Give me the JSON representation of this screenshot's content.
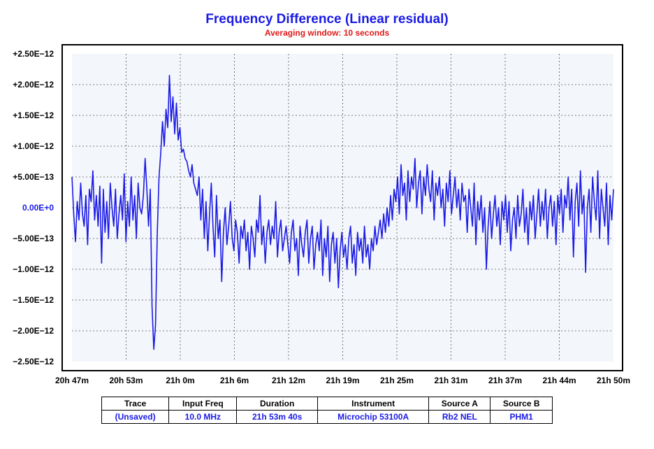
{
  "chart_data": {
    "type": "line",
    "title": "Frequency Difference (Linear residual)",
    "subtitle": "Averaging window: 10 seconds",
    "x_tick_labels": [
      "20h 47m",
      "20h 53m",
      "21h 0m",
      "21h 6m",
      "21h 12m",
      "21h 19m",
      "21h 25m",
      "21h 31m",
      "21h 37m",
      "21h 44m",
      "21h 50m"
    ],
    "y_tick_labels": [
      "+2.50E−12",
      "+2.00E−12",
      "+1.50E−12",
      "+1.00E−12",
      "+5.00E−13",
      "0.00E+0",
      "−5.00E−13",
      "−1.00E−12",
      "−1.50E−12",
      "−2.00E−12",
      "−2.50E−12"
    ],
    "ylim": [
      -2.5e-12,
      2.5e-12
    ],
    "grid": true,
    "series": [
      {
        "color": "#1a1ae6",
        "x_range": [
          "20h 47m",
          "21h 50m"
        ],
        "values_e12": [
          0.5,
          -0.1,
          -0.55,
          0.1,
          -0.2,
          0.4,
          -0.1,
          -0.3,
          0.2,
          -0.6,
          0.3,
          0.1,
          0.6,
          -0.2,
          0.2,
          -0.3,
          0.35,
          -0.9,
          0.3,
          -0.4,
          0.1,
          -0.5,
          0.4,
          0.0,
          -0.3,
          0.3,
          -0.5,
          -0.1,
          0.2,
          -0.2,
          0.55,
          -0.55,
          0.1,
          -0.3,
          0.5,
          -0.2,
          0.2,
          -0.5,
          0.4,
          0.0,
          -0.1,
          0.2,
          0.8,
          0.3,
          -0.3,
          0.3,
          -1.6,
          -2.3,
          -1.9,
          -0.4,
          0.5,
          0.9,
          1.4,
          1.0,
          1.6,
          1.3,
          2.15,
          1.4,
          1.8,
          1.2,
          1.7,
          1.1,
          1.3,
          0.9,
          0.95,
          0.8,
          0.75,
          0.6,
          0.5,
          0.7,
          0.4,
          0.3,
          0.2,
          0.5,
          -0.2,
          0.3,
          -0.5,
          0.1,
          -0.7,
          -0.1,
          0.4,
          -0.3,
          -0.8,
          0.2,
          -0.5,
          -0.2,
          -1.2,
          -0.4,
          0.0,
          -0.6,
          -0.3,
          0.1,
          -0.5,
          -0.7,
          -0.2,
          -0.4,
          -0.9,
          -0.3,
          -0.5,
          -0.2,
          -0.7,
          -0.4,
          -1.0,
          -0.3,
          -0.5,
          -0.8,
          -0.2,
          -0.4,
          0.2,
          -0.6,
          -0.3,
          -0.9,
          -0.4,
          -0.2,
          -0.6,
          -0.3,
          -0.5,
          0.1,
          -0.8,
          -0.4,
          -0.2,
          -0.7,
          -0.5,
          -0.3,
          -0.6,
          -0.9,
          -0.4,
          -0.2,
          -0.7,
          -0.5,
          -1.1,
          -0.3,
          -0.6,
          -0.8,
          -0.4,
          -0.2,
          -0.9,
          -0.5,
          -0.3,
          -1.0,
          -0.6,
          -0.4,
          -0.7,
          -0.2,
          -1.1,
          -0.5,
          -0.8,
          -0.3,
          -1.2,
          -0.6,
          -0.4,
          -0.9,
          -0.5,
          -1.3,
          -0.7,
          -0.4,
          -0.8,
          -0.6,
          -1.0,
          -0.5,
          -0.3,
          -0.9,
          -0.6,
          -1.1,
          -0.4,
          -0.7,
          -0.5,
          -0.9,
          -0.3,
          -0.8,
          -0.6,
          -1.0,
          -0.5,
          -0.7,
          -0.3,
          -0.6,
          -0.4,
          -0.2,
          -0.5,
          -0.1,
          -0.4,
          0.0,
          -0.3,
          0.2,
          -0.2,
          0.3,
          0.1,
          0.5,
          -0.1,
          0.7,
          0.2,
          0.4,
          -0.2,
          0.6,
          0.1,
          0.5,
          0.3,
          0.8,
          0.0,
          0.4,
          0.6,
          -0.1,
          0.5,
          0.2,
          0.7,
          0.3,
          0.1,
          0.6,
          -0.2,
          0.4,
          0.2,
          0.5,
          0.0,
          0.3,
          -0.3,
          0.4,
          0.1,
          0.6,
          -0.1,
          0.2,
          0.5,
          0.0,
          0.3,
          -0.2,
          0.4,
          0.1,
          0.2,
          -0.4,
          0.3,
          0.0,
          -0.3,
          0.4,
          -0.6,
          0.1,
          -0.2,
          0.2,
          -0.4,
          0.0,
          -1.0,
          -0.3,
          0.1,
          -0.5,
          -0.1,
          0.2,
          -0.3,
          0.0,
          -0.6,
          0.1,
          -0.2,
          0.2,
          -0.4,
          0.1,
          -0.7,
          -0.2,
          0.0,
          -0.5,
          0.2,
          -0.3,
          -0.1,
          0.3,
          -0.4,
          0.0,
          -0.6,
          0.1,
          -0.2,
          0.2,
          -0.5,
          -0.1,
          0.3,
          -0.3,
          0.1,
          -0.2,
          0.3,
          -0.5,
          0.0,
          0.2,
          -0.3,
          0.1,
          -0.6,
          0.2,
          -0.1,
          0.3,
          -0.4,
          0.2,
          0.0,
          0.5,
          -0.2,
          0.3,
          -0.8,
          0.1,
          0.4,
          -0.3,
          0.6,
          -0.1,
          0.2,
          -1.05,
          0.0,
          0.3,
          -0.4,
          0.5,
          0.1,
          -0.2,
          0.6,
          -0.5,
          0.3,
          0.0,
          -0.3,
          0.4,
          -0.6,
          0.2,
          -0.2,
          0.3
        ]
      }
    ]
  },
  "info_table": {
    "headers": [
      "Trace",
      "Input Freq",
      "Duration",
      "Instrument",
      "Source A",
      "Source B"
    ],
    "values": [
      "(Unsaved)",
      "10.0 MHz",
      "21h 53m 40s",
      "Microchip 53100A",
      "Rb2 NEL",
      "PHM1"
    ]
  }
}
